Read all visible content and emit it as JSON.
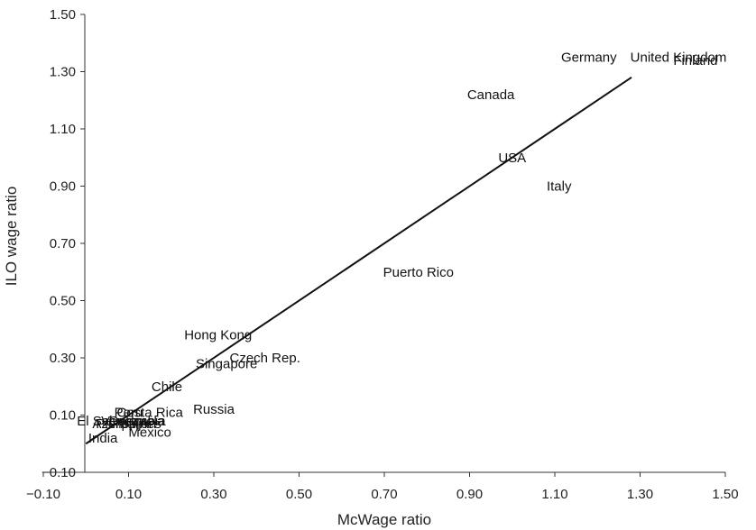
{
  "chart_data": {
    "type": "scatter",
    "title": "",
    "xlabel": "McWage ratio",
    "ylabel": "ILO wage ratio",
    "xlim": [
      -0.1,
      1.5
    ],
    "ylim": [
      -0.1,
      1.5
    ],
    "x_ticks": [
      "−0.10",
      "0.10",
      "0.30",
      "0.50",
      "0.70",
      "0.90",
      "1.10",
      "1.30",
      "1.50"
    ],
    "y_ticks": [
      "−0.10",
      "0.10",
      "0.30",
      "0.50",
      "0.70",
      "0.90",
      "1.10",
      "1.30",
      "1.50"
    ],
    "grid": false,
    "legend": "none",
    "points": [
      {
        "label": "Germany",
        "x": 1.18,
        "y": 1.35
      },
      {
        "label": "United Kingdom",
        "x": 1.39,
        "y": 1.35
      },
      {
        "label": "Finland",
        "x": 1.43,
        "y": 1.34
      },
      {
        "label": "Canada",
        "x": 0.95,
        "y": 1.22
      },
      {
        "label": "USA",
        "x": 1.0,
        "y": 1.0
      },
      {
        "label": "Italy",
        "x": 1.11,
        "y": 0.9
      },
      {
        "label": "Puerto Rico",
        "x": 0.78,
        "y": 0.6
      },
      {
        "label": "Hong Kong",
        "x": 0.31,
        "y": 0.38
      },
      {
        "label": "Czech Rep.",
        "x": 0.42,
        "y": 0.3
      },
      {
        "label": "Singapore",
        "x": 0.33,
        "y": 0.28
      },
      {
        "label": "Chile",
        "x": 0.19,
        "y": 0.2
      },
      {
        "label": "Russia",
        "x": 0.3,
        "y": 0.12
      },
      {
        "label": "Costa Rica",
        "x": 0.15,
        "y": 0.11
      },
      {
        "label": "Peru",
        "x": 0.1,
        "y": 0.11
      },
      {
        "label": "El Salvador",
        "x": 0.06,
        "y": 0.08
      },
      {
        "label": "Colombia",
        "x": 0.12,
        "y": 0.08
      },
      {
        "label": "Venezuela",
        "x": 0.11,
        "y": 0.08
      },
      {
        "label": "Philippines",
        "x": 0.1,
        "y": 0.07
      },
      {
        "label": "Azerbaijan",
        "x": 0.09,
        "y": 0.07
      },
      {
        "label": "Mexico",
        "x": 0.15,
        "y": 0.04
      },
      {
        "label": "India",
        "x": 0.04,
        "y": 0.02
      }
    ],
    "trend_line": {
      "x": [
        0.0,
        1.28
      ],
      "y": [
        0.0,
        1.28
      ]
    }
  }
}
